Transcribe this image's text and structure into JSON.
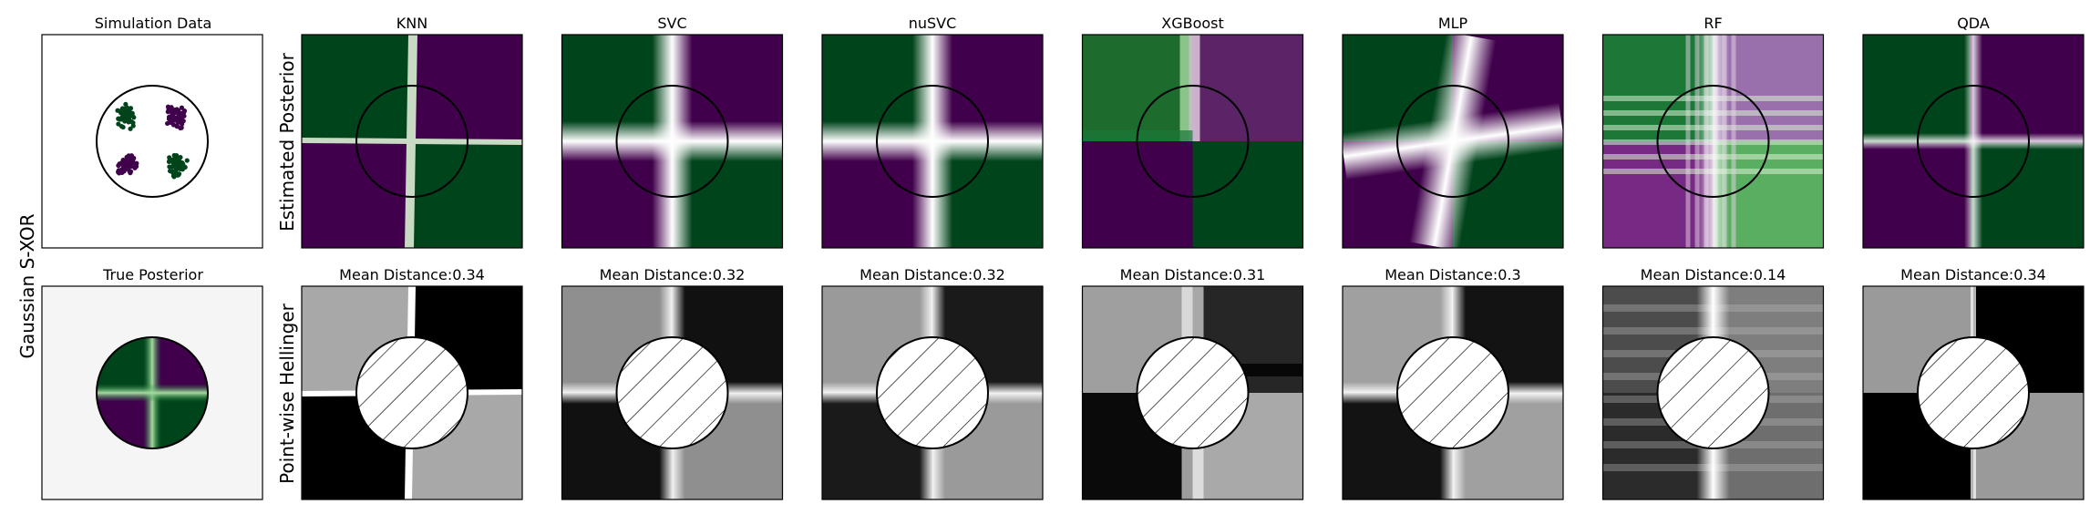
{
  "figure": {
    "row_label": "Gaussian S-XOR",
    "top_row_ylabel": "Estimated Posterior",
    "bottom_row_ylabel": "Point-wise Hellinger"
  },
  "colors": {
    "class0": "#00441b",
    "class1": "#40004b",
    "neutral": "#f7f7f7",
    "true_posterior_bg": "#f5f5f5"
  },
  "chart_data": [
    {
      "type": "scatter",
      "title": "Simulation Data",
      "series": [
        {
          "color": "#00441b",
          "clusters": [
            [
              -0.5,
              0.5
            ],
            [
              0.5,
              -0.5
            ]
          ]
        },
        {
          "color": "#40004b",
          "clusters": [
            [
              0.5,
              0.5
            ],
            [
              -0.5,
              -0.5
            ]
          ]
        }
      ],
      "circle_radius": 1,
      "xlim": [
        -2,
        2
      ],
      "ylim": [
        -2,
        2
      ]
    },
    {
      "type": "heatmap",
      "title": "True Posterior",
      "pattern": "xor-inside-circle",
      "circle_radius": 1
    },
    {
      "type": "heatmap",
      "row": "Estimated Posterior",
      "panels": [
        {
          "title": "KNN"
        },
        {
          "title": "SVC"
        },
        {
          "title": "nuSVC"
        },
        {
          "title": "XGBoost"
        },
        {
          "title": "MLP"
        },
        {
          "title": "RF"
        },
        {
          "title": "QDA"
        }
      ]
    },
    {
      "type": "heatmap",
      "row": "Point-wise Hellinger",
      "panels": [
        {
          "title": "Mean Distance:0.34",
          "classifier": "KNN"
        },
        {
          "title": "Mean Distance:0.32",
          "classifier": "SVC"
        },
        {
          "title": "Mean Distance:0.32",
          "classifier": "nuSVC"
        },
        {
          "title": "Mean Distance:0.31",
          "classifier": "XGBoost"
        },
        {
          "title": "Mean Distance:0.3",
          "classifier": "MLP"
        },
        {
          "title": "Mean Distance:0.14",
          "classifier": "RF"
        },
        {
          "title": "Mean Distance:0.34",
          "classifier": "QDA"
        }
      ]
    }
  ]
}
